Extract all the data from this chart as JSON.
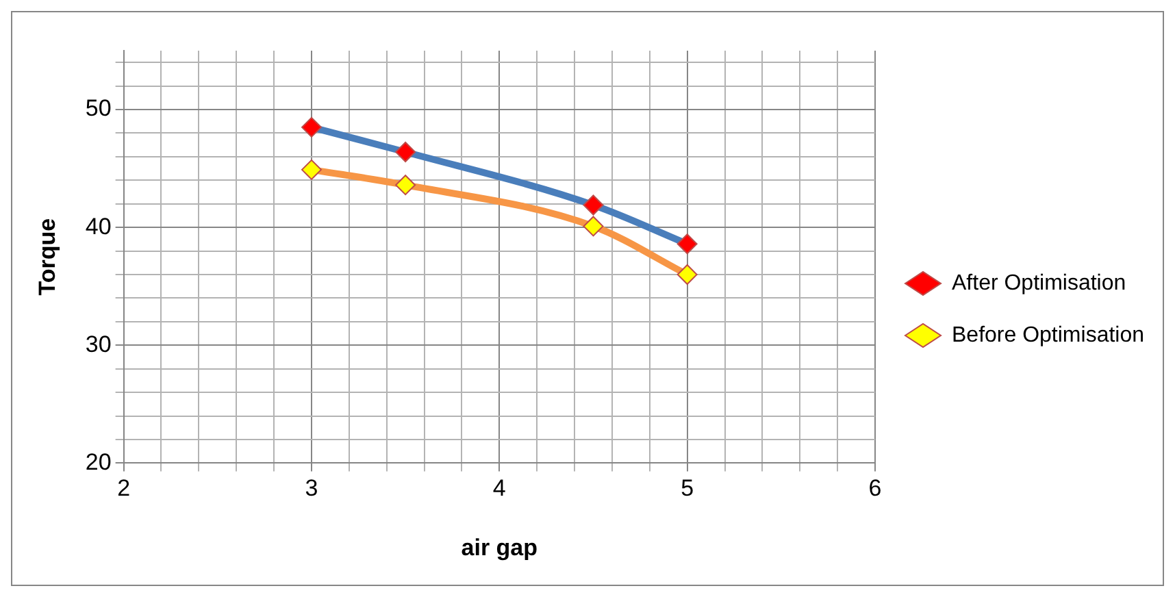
{
  "chart_data": {
    "type": "line",
    "xlabel": "air gap",
    "ylabel": "Torque",
    "x": [
      3,
      3.5,
      4.5,
      5
    ],
    "series": [
      {
        "name": "After Optimisation",
        "color": "#4a7ebb",
        "values": [
          48.5,
          46.4,
          41.9,
          38.6
        ]
      },
      {
        "name": "Before Optimisation",
        "color": "#f79646",
        "values": [
          44.9,
          43.6,
          40.1,
          36.0
        ]
      }
    ],
    "xlim": [
      2,
      6
    ],
    "xticks": [
      2,
      {
        "value": 2.2,
        "label": null
      },
      {
        "value": 2.4,
        "label": null
      },
      {
        "value": 2.6,
        "label": null
      },
      {
        "value": 2.8,
        "label": null
      },
      3,
      {
        "value": 3.2,
        "label": null
      },
      {
        "value": 3.4,
        "label": null
      },
      {
        "value": 3.6,
        "label": null
      },
      {
        "value": 3.8,
        "label": null
      },
      4,
      {
        "value": 4.2,
        "label": null
      },
      {
        "value": 4.4,
        "label": null
      },
      {
        "value": 4.6,
        "label": null
      },
      {
        "value": 4.8,
        "label": null
      },
      5,
      {
        "value": 5.2,
        "label": null
      },
      {
        "value": 5.4,
        "label": null
      },
      {
        "value": 5.6,
        "label": null
      },
      {
        "value": 5.8,
        "label": null
      },
      6
    ],
    "ylim": [
      20,
      55
    ],
    "yticks": [
      20,
      {
        "value": 22,
        "label": null
      },
      {
        "value": 24,
        "label": null
      },
      {
        "value": 26,
        "label": null
      },
      {
        "value": 28,
        "label": null
      },
      30,
      {
        "value": 32,
        "label": null
      },
      {
        "value": 34,
        "label": null
      },
      {
        "value": 36,
        "label": null
      },
      {
        "value": 38,
        "label": null
      },
      40,
      {
        "value": 42,
        "label": null
      },
      {
        "value": 44,
        "label": null
      },
      {
        "value": 46,
        "label": null
      },
      {
        "value": 48,
        "label": null
      },
      50,
      {
        "value": 52,
        "label": null
      },
      {
        "value": 54,
        "label": null
      }
    ],
    "grid": true,
    "legend": "right",
    "marker": "diamond",
    "line_style": "solid"
  }
}
